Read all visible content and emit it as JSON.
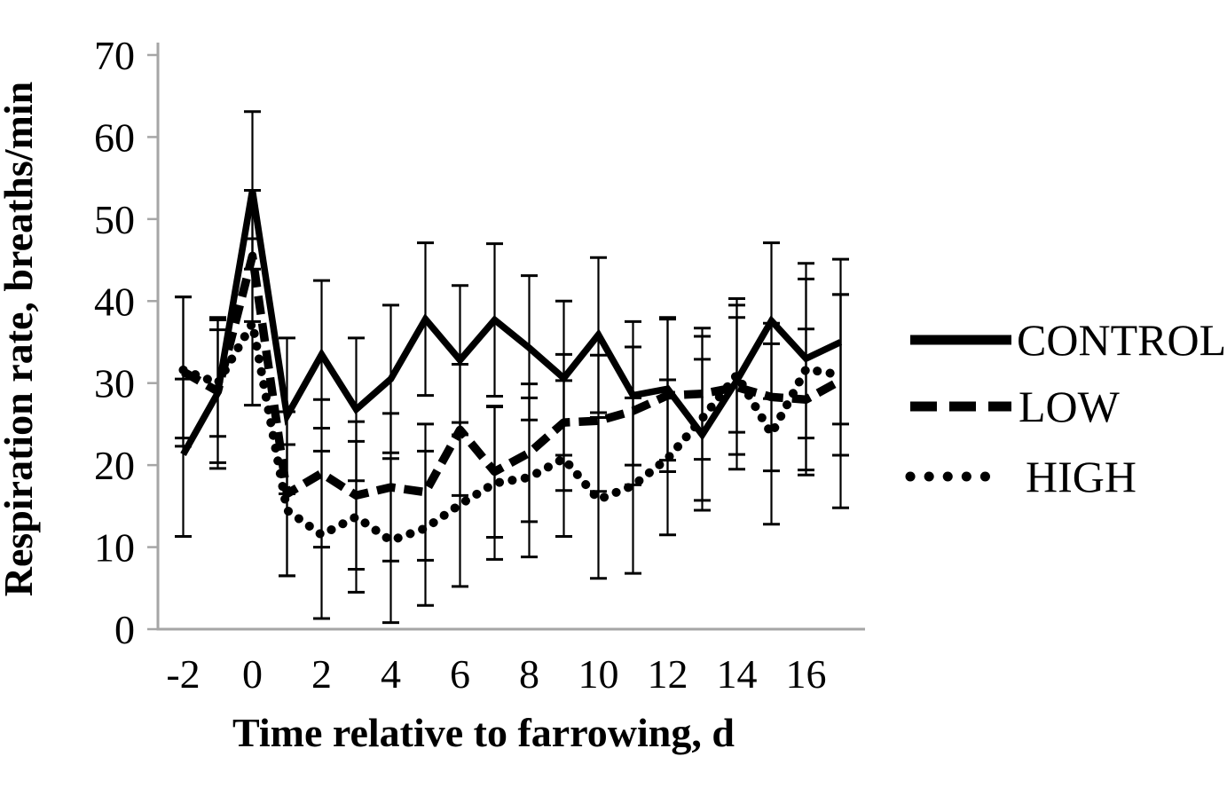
{
  "page": {
    "background": "#ffffff"
  },
  "chart_data": {
    "type": "line",
    "title": "",
    "xlabel": "Time relative to farrowing, d",
    "ylabel": "Respiration rate, breaths/min",
    "x": [
      -2,
      -1,
      0,
      1,
      2,
      3,
      4,
      5,
      6,
      7,
      8,
      9,
      10,
      11,
      12,
      13,
      14,
      15,
      16,
      17
    ],
    "x_tick_labels": [
      -2,
      0,
      2,
      4,
      6,
      8,
      10,
      12,
      14,
      16
    ],
    "y_tick_labels": [
      0,
      10,
      20,
      30,
      40,
      50,
      60,
      70
    ],
    "ylim": [
      0,
      70
    ],
    "grid": false,
    "legend_position": "right",
    "error_bars": true,
    "axis_color": "#a6a6a6",
    "line_color": "#000000",
    "series": [
      {
        "name": "CONTROL",
        "style": "solid",
        "values": [
          21.3,
          28.8,
          53.5,
          26.0,
          33.5,
          26.8,
          30.5,
          37.8,
          32.8,
          37.7,
          34.3,
          30.6,
          35.9,
          28.5,
          29.3,
          23.7,
          30.3,
          37.6,
          33.0,
          35.0
        ],
        "err_up": [
          9.2,
          9.2,
          9.6,
          9.5,
          9.0,
          8.7,
          9.0,
          9.3,
          9.1,
          9.3,
          8.8,
          9.4,
          9.4,
          9.0,
          8.7,
          9.2,
          10.0,
          9.5,
          9.7,
          10.1
        ],
        "err_dn": [
          10.0,
          9.2,
          9.6,
          9.5,
          9.0,
          8.7,
          9.0,
          9.3,
          9.1,
          9.3,
          8.8,
          9.4,
          9.5,
          8.5,
          8.7,
          9.2,
          9.0,
          9.5,
          9.7,
          10.0
        ]
      },
      {
        "name": "LOW",
        "style": "dashed",
        "values": [
          31.4,
          29.0,
          45.5,
          16.5,
          19.0,
          16.3,
          17.3,
          16.7,
          24.3,
          19.2,
          21.5,
          25.2,
          25.4,
          26.6,
          28.5,
          28.7,
          29.5,
          28.3,
          28.0,
          30.3
        ],
        "err_up": [
          9.1,
          8.7,
          8.0,
          10.0,
          9.0,
          9.0,
          9.0,
          8.3,
          8.0,
          8.0,
          8.4,
          8.3,
          8.0,
          7.8,
          9.3,
          8.0,
          10.0,
          9.0,
          8.6,
          10.5
        ],
        "err_dn": [
          9.1,
          8.7,
          8.0,
          10.0,
          9.0,
          9.0,
          9.0,
          8.3,
          8.0,
          8.0,
          8.4,
          8.3,
          8.6,
          9.0,
          9.3,
          8.0,
          10.0,
          9.0,
          8.6,
          9.1
        ]
      },
      {
        "name": "HIGH",
        "style": "dotted",
        "values": [
          31.6,
          30.0,
          37.3,
          14.5,
          11.5,
          13.7,
          10.8,
          12.3,
          15.2,
          17.8,
          18.5,
          20.8,
          15.8,
          17.5,
          20.8,
          25.7,
          31.0,
          23.8,
          31.7,
          31.0
        ],
        "err_up": [
          8.9,
          6.5,
          10.3,
          8.0,
          10.2,
          9.2,
          10.0,
          9.4,
          10.0,
          9.3,
          9.7,
          9.5,
          10.0,
          10.7,
          9.6,
          10.0,
          7.0,
          11.0,
          12.9,
          9.8
        ],
        "err_dn": [
          8.3,
          6.5,
          10.0,
          8.0,
          10.2,
          9.2,
          10.0,
          9.4,
          10.0,
          9.3,
          9.7,
          9.5,
          9.6,
          10.7,
          9.3,
          10.0,
          7.0,
          11.0,
          12.9,
          16.2
        ]
      }
    ]
  }
}
